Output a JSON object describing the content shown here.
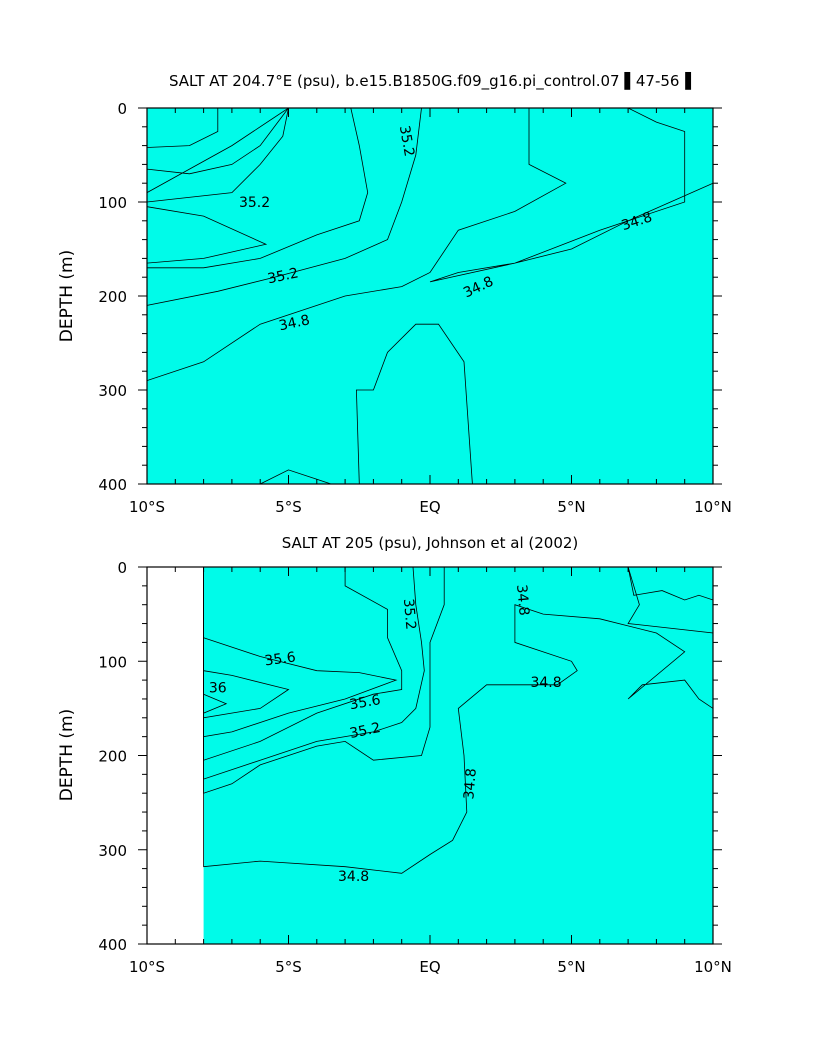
{
  "chart_data": [
    {
      "type": "contour",
      "title": "SALT AT 204.7°E (psu), b.e15.B1850G.f09_g16.pi_control.07 ▌47-56▐",
      "ylabel": "DEPTH (m)",
      "xlabel": "",
      "xlim": [
        -10,
        10
      ],
      "ylim": [
        0,
        400
      ],
      "y_inverted": true,
      "x_ticks": [
        {
          "v": -10,
          "label": "10°S"
        },
        {
          "v": -5,
          "label": "5°S"
        },
        {
          "v": 0,
          "label": "EQ"
        },
        {
          "v": 5,
          "label": "5°N"
        },
        {
          "v": 10,
          "label": "10°N"
        }
      ],
      "y_ticks": [
        {
          "v": 0,
          "label": "0"
        },
        {
          "v": 100,
          "label": "100"
        },
        {
          "v": 200,
          "label": "200"
        },
        {
          "v": 300,
          "label": "300"
        },
        {
          "v": 400,
          "label": "400"
        }
      ],
      "data_extent": [
        -10,
        10
      ],
      "background_level": "34.6-34.8",
      "regions": [
        {
          "level": "34.8-35.0",
          "points": [
            [
              -10,
              90
            ],
            [
              -7,
              40
            ],
            [
              -5,
              0
            ],
            [
              3.5,
              0
            ],
            [
              3.5,
              60
            ],
            [
              4.8,
              80
            ],
            [
              3,
              110
            ],
            [
              1,
              130
            ],
            [
              0,
              175
            ],
            [
              -1,
              190
            ],
            [
              -3,
              200
            ],
            [
              -6,
              230
            ],
            [
              -8,
              270
            ],
            [
              -10,
              290
            ]
          ]
        },
        {
          "level": "34.8-35.0",
          "points": [
            [
              10,
              0
            ],
            [
              10,
              80
            ],
            [
              7,
              120
            ],
            [
              5,
              150
            ],
            [
              3,
              165
            ],
            [
              1,
              175
            ],
            [
              0,
              185
            ],
            [
              3,
              165
            ],
            [
              6,
              130
            ],
            [
              9,
              100
            ],
            [
              9,
              25
            ],
            [
              8,
              15
            ],
            [
              7,
              0
            ]
          ]
        },
        {
          "level": "35.0-35.2",
          "points": [
            [
              -10,
              65
            ],
            [
              -8.5,
              70
            ],
            [
              -7,
              60
            ],
            [
              -6,
              40
            ],
            [
              -5,
              0
            ],
            [
              -0.3,
              0
            ],
            [
              -0.5,
              50
            ],
            [
              -1,
              100
            ],
            [
              -1.5,
              140
            ],
            [
              -3,
              160
            ],
            [
              -5.5,
              180
            ],
            [
              -7.5,
              195
            ],
            [
              -10,
              210
            ]
          ]
        },
        {
          "level": "35.2-35.4",
          "points": [
            [
              -10,
              100
            ],
            [
              -7,
              90
            ],
            [
              -6,
              60
            ],
            [
              -5.2,
              30
            ],
            [
              -5,
              0
            ],
            [
              -2.8,
              0
            ],
            [
              -2.5,
              40
            ],
            [
              -2.2,
              90
            ],
            [
              -2.5,
              120
            ],
            [
              -4,
              135
            ],
            [
              -6,
              160
            ],
            [
              -8,
              170
            ],
            [
              -10,
              170
            ]
          ]
        },
        {
          "level": "35.4-35.6",
          "points": [
            [
              -10,
              105
            ],
            [
              -8,
              115
            ],
            [
              -5.8,
              145
            ],
            [
              -8,
              160
            ],
            [
              -10,
              165
            ]
          ]
        },
        {
          "level": "34.6-34.8",
          "points": [
            [
              -10,
              0
            ],
            [
              -7.5,
              0
            ],
            [
              -7.5,
              25
            ],
            [
              -8.5,
              40
            ],
            [
              -10,
              42
            ]
          ]
        },
        {
          "level": "34.6-34.8",
          "points": [
            [
              -2.5,
              400
            ],
            [
              -2.6,
              300
            ],
            [
              -2,
              300
            ],
            [
              -1.5,
              260
            ],
            [
              -0.5,
              230
            ],
            [
              0.3,
              230
            ],
            [
              1.2,
              270
            ],
            [
              1.5,
              400
            ]
          ]
        },
        {
          "level": "34.6-34.8",
          "points": [
            [
              -6,
              400
            ],
            [
              -5,
              385
            ],
            [
              -4,
              395
            ],
            [
              -3.5,
              400
            ]
          ]
        }
      ],
      "contour_labels": [
        {
          "x": -6.2,
          "y": 100,
          "text": "35.2",
          "rot": 0
        },
        {
          "x": -0.8,
          "y": 35,
          "text": "35.2",
          "rot": 80
        },
        {
          "x": -5.2,
          "y": 178,
          "text": "35.2",
          "rot": -12
        },
        {
          "x": -4.8,
          "y": 228,
          "text": "34.8",
          "rot": -12
        },
        {
          "x": 1.7,
          "y": 190,
          "text": "34.8",
          "rot": -25
        },
        {
          "x": 7.3,
          "y": 120,
          "text": "34.8",
          "rot": -18
        }
      ]
    },
    {
      "type": "contour",
      "title": "SALT AT 205 (psu), Johnson et al (2002)",
      "ylabel": "DEPTH (m)",
      "xlabel": "",
      "xlim": [
        -10,
        10
      ],
      "ylim": [
        0,
        400
      ],
      "y_inverted": true,
      "x_ticks": [
        {
          "v": -10,
          "label": "10°S"
        },
        {
          "v": -5,
          "label": "5°S"
        },
        {
          "v": 0,
          "label": "EQ"
        },
        {
          "v": 5,
          "label": "5°N"
        },
        {
          "v": 10,
          "label": "10°N"
        }
      ],
      "y_ticks": [
        {
          "v": 0,
          "label": "0"
        },
        {
          "v": 100,
          "label": "100"
        },
        {
          "v": 200,
          "label": "200"
        },
        {
          "v": 300,
          "label": "300"
        },
        {
          "v": 400,
          "label": "400"
        }
      ],
      "data_extent": [
        -8,
        10
      ],
      "background_level": "34.6-34.8",
      "regions": [
        {
          "level": "34.8-35.0",
          "points": [
            [
              -8,
              265
            ],
            [
              -8,
              0
            ],
            [
              7,
              0
            ],
            [
              7.4,
              40
            ],
            [
              7,
              60
            ],
            [
              10,
              70
            ],
            [
              10,
              150
            ],
            [
              9.5,
              140
            ],
            [
              9,
              120
            ],
            [
              7.5,
              125
            ],
            [
              7,
              140
            ],
            [
              9,
              90
            ],
            [
              8,
              70
            ],
            [
              6,
              55
            ],
            [
              4,
              50
            ],
            [
              3,
              40
            ],
            [
              3,
              80
            ],
            [
              5,
              100
            ],
            [
              5.2,
              110
            ],
            [
              4.5,
              125
            ],
            [
              2,
              125
            ],
            [
              1,
              150
            ],
            [
              1.2,
              200
            ],
            [
              1.3,
              260
            ],
            [
              0.8,
              290
            ],
            [
              0,
              305
            ],
            [
              -1,
              325
            ],
            [
              -3,
              318
            ],
            [
              -6,
              312
            ],
            [
              -8,
              318
            ]
          ]
        },
        {
          "level": "35.0-35.2",
          "points": [
            [
              -8,
              0
            ],
            [
              0.5,
              0
            ],
            [
              0.5,
              40
            ],
            [
              0,
              80
            ],
            [
              0,
              170
            ],
            [
              -0.3,
              200
            ],
            [
              -2,
              205
            ],
            [
              -3,
              185
            ],
            [
              -4,
              190
            ],
            [
              -6,
              210
            ],
            [
              -7,
              230
            ],
            [
              -8,
              240
            ]
          ]
        },
        {
          "level": "35.2-35.4",
          "points": [
            [
              -8,
              0
            ],
            [
              -0.6,
              0
            ],
            [
              -0.5,
              40
            ],
            [
              -0.3,
              80
            ],
            [
              -0.2,
              110
            ],
            [
              -0.5,
              150
            ],
            [
              -1,
              165
            ],
            [
              -2,
              175
            ],
            [
              -4,
              185
            ],
            [
              -6,
              205
            ],
            [
              -8,
              225
            ]
          ]
        },
        {
          "level": "35.4-35.6",
          "points": [
            [
              -8,
              0
            ],
            [
              -3,
              0
            ],
            [
              -3,
              20
            ],
            [
              -1.5,
              45
            ],
            [
              -1.5,
              75
            ],
            [
              -1,
              110
            ],
            [
              -1,
              130
            ],
            [
              -2,
              135
            ],
            [
              -4,
              155
            ],
            [
              -6,
              185
            ],
            [
              -8,
              205
            ]
          ]
        },
        {
          "level": "35.6-35.8",
          "points": [
            [
              -8,
              75
            ],
            [
              -6,
              95
            ],
            [
              -4,
              110
            ],
            [
              -2.5,
              112
            ],
            [
              -1.2,
              120
            ],
            [
              -3,
              140
            ],
            [
              -5,
              155
            ],
            [
              -7,
              175
            ],
            [
              -8,
              180
            ]
          ]
        },
        {
          "level": "35.8-36.0",
          "points": [
            [
              -8,
              110
            ],
            [
              -7,
              115
            ],
            [
              -5,
              130
            ],
            [
              -6,
              150
            ],
            [
              -8,
              160
            ]
          ]
        },
        {
          "level": "36.0-36.2",
          "points": [
            [
              -8,
              135
            ],
            [
              -7.2,
              145
            ],
            [
              -8,
              155
            ]
          ]
        },
        {
          "level": "34.4-34.6",
          "points": [
            [
              7,
              0
            ],
            [
              10,
              0
            ],
            [
              10,
              35
            ],
            [
              9.5,
              30
            ],
            [
              9,
              35
            ],
            [
              8.2,
              25
            ],
            [
              7.2,
              30
            ]
          ]
        }
      ],
      "contour_labels": [
        {
          "x": -5.3,
          "y": 97,
          "text": "35.6",
          "rot": -8
        },
        {
          "x": -7.5,
          "y": 128,
          "text": "36",
          "rot": 0
        },
        {
          "x": -2.3,
          "y": 143,
          "text": "35.6",
          "rot": -10
        },
        {
          "x": -2.3,
          "y": 173,
          "text": "35.2",
          "rot": -12
        },
        {
          "x": -0.7,
          "y": 50,
          "text": "35.2",
          "rot": 85
        },
        {
          "x": 3.3,
          "y": 35,
          "text": "34.8",
          "rot": 85
        },
        {
          "x": 4.1,
          "y": 122,
          "text": "34.8",
          "rot": 0
        },
        {
          "x": 1.4,
          "y": 230,
          "text": "34.8",
          "rot": -85
        },
        {
          "x": -2.7,
          "y": 328,
          "text": "34.8",
          "rot": 0
        }
      ]
    }
  ],
  "level_colors": {
    "34.4-34.6": "#33e2f9",
    "34.6-34.8": "#00fbe9",
    "34.8-35.0": "#00f3a8",
    "35.0-35.2": "#03f363",
    "35.2-35.4": "#0cee09",
    "35.4-35.6": "#90fb00",
    "35.6-35.8": "#fcfc00",
    "35.8-36.0": "#fcd340",
    "36.0-36.2": "#f8b040"
  }
}
